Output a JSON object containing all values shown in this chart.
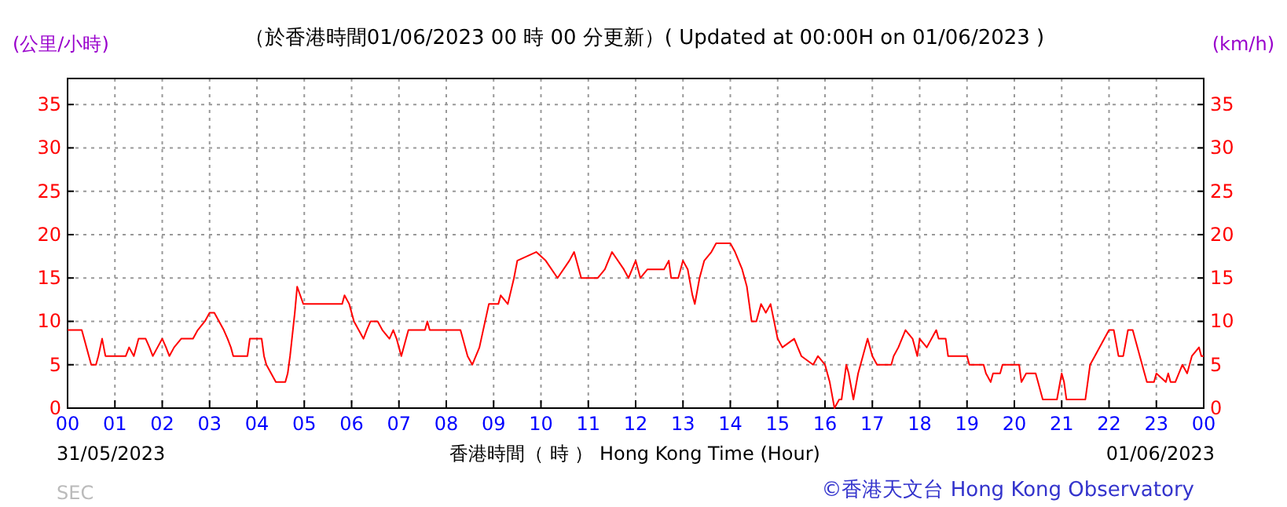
{
  "chart_data": {
    "type": "line",
    "title": "（於香港時間01/06/2023 00 時 00 分更新）( Updated at 00:00H on 01/06/2023 )",
    "ylabel": "(公里/小時)",
    "y2label": "(km/h)",
    "xlabel": "香港時間（ 時 ） Hong Kong Time (Hour)",
    "annotations": [
      "31/05/2023",
      "01/06/2023",
      "©香港天文台 Hong Kong Observatory",
      "SEC"
    ],
    "xlim": [
      0,
      24
    ],
    "xticks": [
      {
        "value": 0,
        "label": "00"
      },
      {
        "value": 1,
        "label": "01"
      },
      {
        "value": 2,
        "label": "02"
      },
      {
        "value": 3,
        "label": "03"
      },
      {
        "value": 4,
        "label": "04"
      },
      {
        "value": 5,
        "label": "05"
      },
      {
        "value": 6,
        "label": "06"
      },
      {
        "value": 7,
        "label": "07"
      },
      {
        "value": 8,
        "label": "08"
      },
      {
        "value": 9,
        "label": "09"
      },
      {
        "value": 10,
        "label": "10"
      },
      {
        "value": 11,
        "label": "11"
      },
      {
        "value": 12,
        "label": "12"
      },
      {
        "value": 13,
        "label": "13"
      },
      {
        "value": 14,
        "label": "14"
      },
      {
        "value": 15,
        "label": "15"
      },
      {
        "value": 16,
        "label": "16"
      },
      {
        "value": 17,
        "label": "17"
      },
      {
        "value": 18,
        "label": "18"
      },
      {
        "value": 19,
        "label": "19"
      },
      {
        "value": 20,
        "label": "20"
      },
      {
        "value": 21,
        "label": "21"
      },
      {
        "value": 22,
        "label": "22"
      },
      {
        "value": 23,
        "label": "23"
      },
      {
        "value": 24,
        "label": "00"
      }
    ],
    "ylim": [
      0,
      38
    ],
    "yticks": [
      0,
      5,
      10,
      15,
      20,
      25,
      30,
      35
    ],
    "y2lim": [
      0,
      38
    ],
    "y2ticks": [
      0,
      5,
      10,
      15,
      20,
      25,
      30,
      35
    ],
    "grid": true,
    "line_style": "solid",
    "series": [
      {
        "color": "#ff0000",
        "x": [
          0,
          0.3,
          0.35,
          0.4,
          0.45,
          0.5,
          0.6,
          0.65,
          0.73,
          0.8,
          1.23,
          1.3,
          1.4,
          1.5,
          1.65,
          1.73,
          1.8,
          1.9,
          2.0,
          2.08,
          2.15,
          2.25,
          2.4,
          2.65,
          2.75,
          2.9,
          3.0,
          3.1,
          3.2,
          3.3,
          3.38,
          3.45,
          3.5,
          3.8,
          3.85,
          4.1,
          4.15,
          4.2,
          4.3,
          4.4,
          4.6,
          4.65,
          4.7,
          4.8,
          4.85,
          4.98,
          5.8,
          5.85,
          5.95,
          6.05,
          6.15,
          6.25,
          6.32,
          6.4,
          6.55,
          6.65,
          6.8,
          6.88,
          6.95,
          7.0,
          7.05,
          7.15,
          7.2,
          7.55,
          7.6,
          7.65,
          8.3,
          8.45,
          8.55,
          8.7,
          8.9,
          9.1,
          9.15,
          9.3,
          9.43,
          9.5,
          9.9,
          10.1,
          10.35,
          10.6,
          10.7,
          10.85,
          11.2,
          11.35,
          11.5,
          11.75,
          11.85,
          12.0,
          12.1,
          12.25,
          12.6,
          12.7,
          12.75,
          12.9,
          13.0,
          13.1,
          13.2,
          13.25,
          13.35,
          13.45,
          13.6,
          13.7,
          14.0,
          14.1,
          14.25,
          14.35,
          14.45,
          14.55,
          14.65,
          14.75,
          14.85,
          15.0,
          15.1,
          15.35,
          15.5,
          15.75,
          15.85,
          16.0,
          16.1,
          16.2,
          16.3,
          16.35,
          16.45,
          16.5,
          16.6,
          16.7,
          16.8,
          16.9,
          17.0,
          17.1,
          17.4,
          17.45,
          17.55,
          17.7,
          17.85,
          17.95,
          18.0,
          18.15,
          18.35,
          18.4,
          18.55,
          18.6,
          19.0,
          19.05,
          19.35,
          19.4,
          19.5,
          19.55,
          19.7,
          19.75,
          20.1,
          20.15,
          20.25,
          20.45,
          20.5,
          20.6,
          20.9,
          21.0,
          21.05,
          21.1,
          21.5,
          21.55,
          21.6,
          21.7,
          21.9,
          22.0,
          22.1,
          22.2,
          22.3,
          22.4,
          22.5,
          22.65,
          22.75,
          22.8,
          22.95,
          23.0,
          23.2,
          23.25,
          23.3,
          23.4,
          23.55,
          23.65,
          23.75,
          23.9,
          23.95,
          24.0
        ],
        "values": [
          9,
          9,
          8,
          7,
          6,
          5,
          5,
          6,
          8,
          6,
          6,
          7,
          6,
          8,
          8,
          7,
          6,
          7,
          8,
          7,
          6,
          7,
          8,
          8,
          9,
          10,
          11,
          11,
          10,
          9,
          8,
          7,
          6,
          6,
          8,
          8,
          6,
          5,
          4,
          3,
          3,
          4,
          6,
          11,
          14,
          12,
          12,
          13,
          12,
          10,
          9,
          8,
          9,
          10,
          10,
          9,
          8,
          9,
          8,
          7,
          6,
          8,
          9,
          9,
          10,
          9,
          9,
          6,
          5,
          7,
          12,
          12,
          13,
          12,
          15,
          17,
          18,
          17,
          15,
          17,
          18,
          15,
          15,
          16,
          18,
          16,
          15,
          17,
          15,
          16,
          16,
          17,
          15,
          15,
          17,
          16,
          13,
          12,
          15,
          17,
          18,
          19,
          19,
          18,
          16,
          14,
          10,
          10,
          12,
          11,
          12,
          8,
          7,
          8,
          6,
          5,
          6,
          5,
          3,
          0,
          1,
          1,
          5,
          4,
          1,
          4,
          6,
          8,
          6,
          5,
          5,
          6,
          7,
          9,
          8,
          6,
          8,
          7,
          9,
          8,
          8,
          6,
          6,
          5,
          5,
          4,
          3,
          4,
          4,
          5,
          5,
          3,
          4,
          4,
          3,
          1,
          1,
          4,
          3,
          1,
          1,
          3,
          5,
          6,
          8,
          9,
          9,
          6,
          6,
          9,
          9,
          6,
          4,
          3,
          3,
          4,
          3,
          4,
          3,
          3,
          5,
          4,
          6,
          7,
          6,
          6
        ]
      }
    ]
  }
}
